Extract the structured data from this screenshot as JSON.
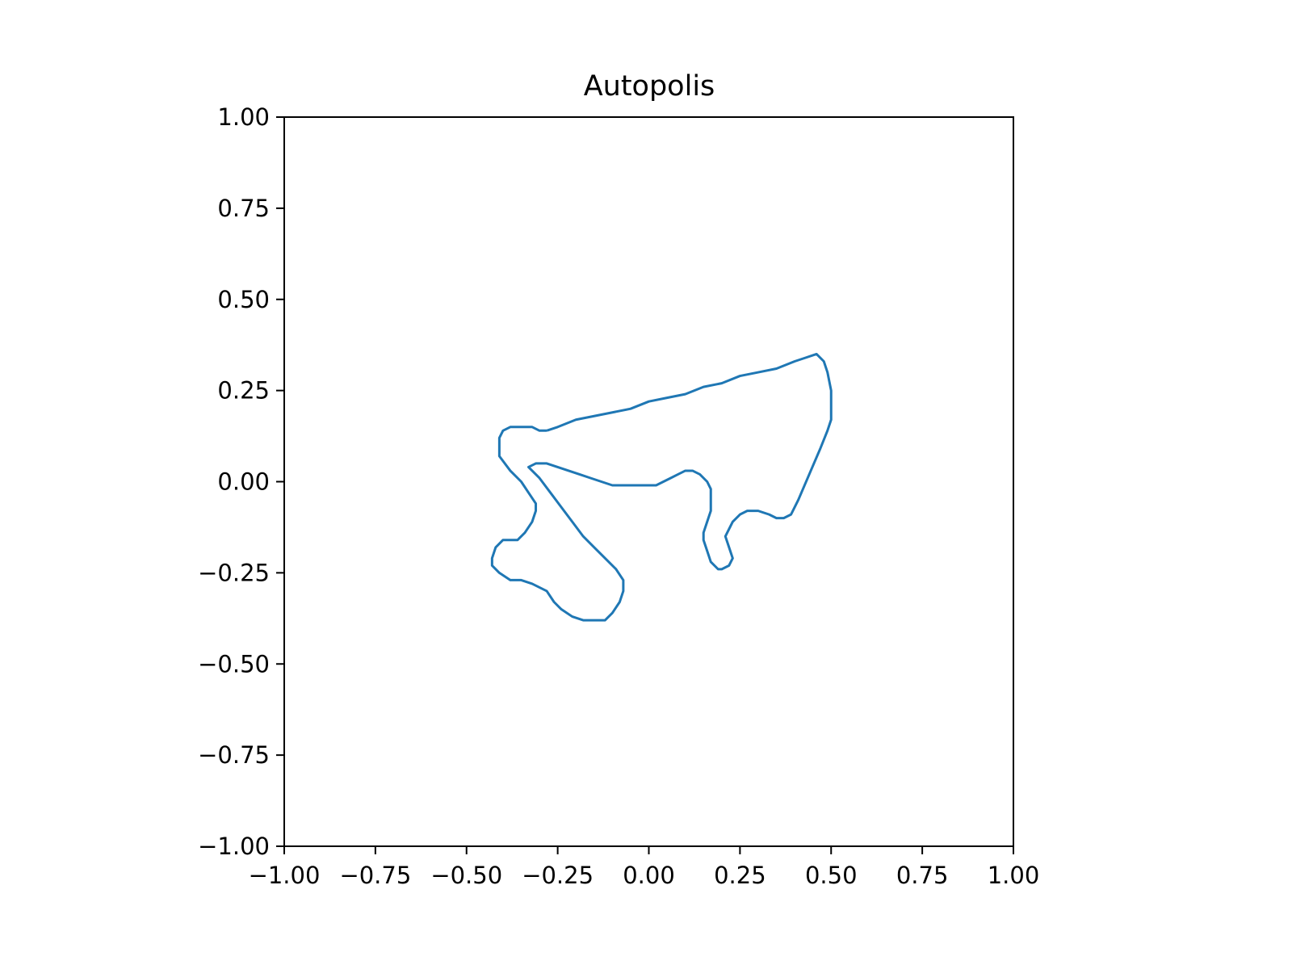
{
  "chart_data": {
    "type": "line",
    "title": "Autopolis",
    "xlabel": "",
    "ylabel": "",
    "xlim": [
      -1.0,
      1.0
    ],
    "ylim": [
      -1.0,
      1.0
    ],
    "xticks": [
      "−1.00",
      "−0.75",
      "−0.50",
      "−0.25",
      "0.00",
      "0.25",
      "0.50",
      "0.75",
      "1.00"
    ],
    "yticks": [
      "−1.00",
      "−0.75",
      "−0.50",
      "−0.25",
      "0.00",
      "0.25",
      "0.50",
      "0.75",
      "1.00"
    ],
    "grid": false,
    "legend": "none",
    "color": "#1f77b4",
    "series": [
      {
        "x": [
          -0.28,
          -0.25,
          -0.2,
          -0.15,
          -0.1,
          -0.05,
          0.0,
          0.05,
          0.1,
          0.15,
          0.2,
          0.25,
          0.3,
          0.35,
          0.4,
          0.43,
          0.46,
          0.48,
          0.49,
          0.5,
          0.5,
          0.49,
          0.47,
          0.44,
          0.41,
          0.39,
          0.37,
          0.35,
          0.33,
          0.3,
          0.27,
          0.25,
          0.23,
          0.22,
          0.21,
          0.22,
          0.23,
          0.22,
          0.2,
          0.19,
          0.17,
          0.16,
          0.15,
          0.15,
          0.16,
          0.17,
          0.17,
          0.16,
          0.14,
          0.12,
          0.1,
          0.08,
          0.06,
          0.04,
          0.02,
          0.0,
          -0.03,
          -0.06,
          -0.1,
          -0.13,
          -0.16,
          -0.19,
          -0.22,
          -0.25,
          -0.28,
          -0.31,
          -0.33,
          -0.32,
          -0.3,
          -0.27,
          -0.24,
          -0.21,
          -0.18,
          -0.15,
          -0.12,
          -0.09,
          -0.07,
          -0.07,
          -0.08,
          -0.1,
          -0.12,
          -0.15,
          -0.18,
          -0.21,
          -0.24,
          -0.26,
          -0.28,
          -0.3,
          -0.32,
          -0.35,
          -0.38,
          -0.41,
          -0.43,
          -0.43,
          -0.42,
          -0.4,
          -0.36,
          -0.34,
          -0.32,
          -0.31,
          -0.31,
          -0.33,
          -0.35,
          -0.38,
          -0.41,
          -0.41,
          -0.41,
          -0.4,
          -0.38,
          -0.35,
          -0.32,
          -0.3,
          -0.28
        ],
        "y": [
          0.14,
          0.15,
          0.17,
          0.18,
          0.19,
          0.2,
          0.22,
          0.23,
          0.24,
          0.26,
          0.27,
          0.29,
          0.3,
          0.31,
          0.33,
          0.34,
          0.35,
          0.33,
          0.3,
          0.25,
          0.17,
          0.14,
          0.09,
          0.02,
          -0.05,
          -0.09,
          -0.1,
          -0.1,
          -0.09,
          -0.08,
          -0.08,
          -0.09,
          -0.11,
          -0.13,
          -0.15,
          -0.18,
          -0.21,
          -0.23,
          -0.24,
          -0.24,
          -0.22,
          -0.19,
          -0.16,
          -0.14,
          -0.11,
          -0.08,
          -0.02,
          0.0,
          0.02,
          0.03,
          0.03,
          0.02,
          0.01,
          0.0,
          -0.01,
          -0.01,
          -0.01,
          -0.01,
          -0.01,
          0.0,
          0.01,
          0.02,
          0.03,
          0.04,
          0.05,
          0.05,
          0.04,
          0.03,
          0.01,
          -0.03,
          -0.07,
          -0.11,
          -0.15,
          -0.18,
          -0.21,
          -0.24,
          -0.27,
          -0.3,
          -0.33,
          -0.36,
          -0.38,
          -0.38,
          -0.38,
          -0.37,
          -0.35,
          -0.33,
          -0.3,
          -0.29,
          -0.28,
          -0.27,
          -0.27,
          -0.25,
          -0.23,
          -0.21,
          -0.18,
          -0.16,
          -0.16,
          -0.14,
          -0.11,
          -0.08,
          -0.06,
          -0.03,
          0.0,
          0.03,
          0.07,
          0.1,
          0.12,
          0.14,
          0.15,
          0.15,
          0.15,
          0.14,
          0.14
        ]
      }
    ]
  }
}
